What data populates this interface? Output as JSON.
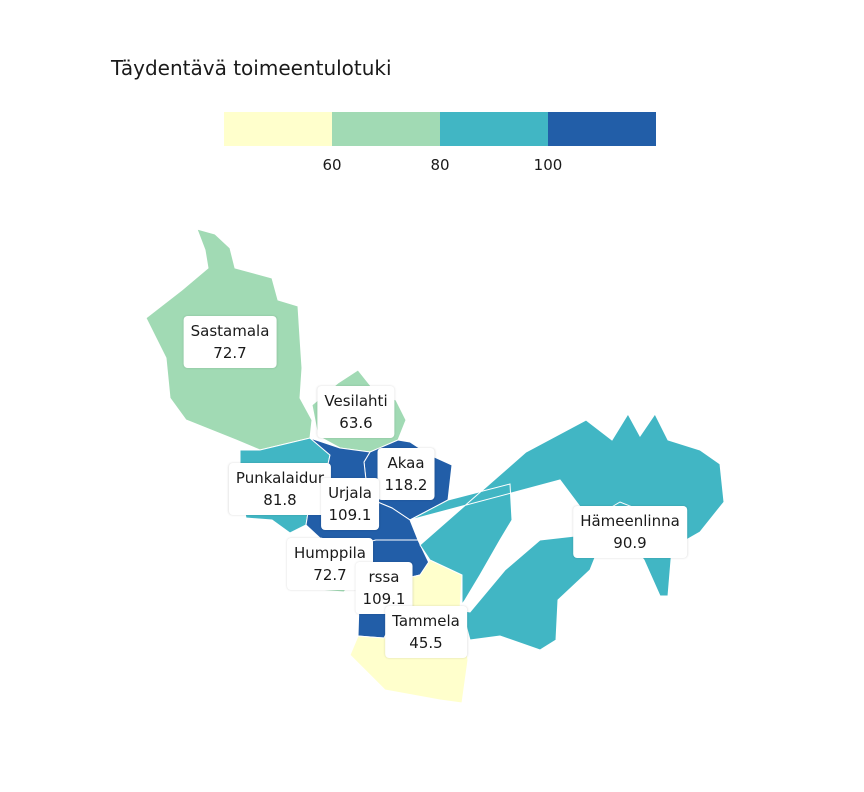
{
  "title": "Täydentävä toimeentulotuki",
  "legend": {
    "colors": [
      "#ffffcc",
      "#a1dab4",
      "#41b6c4",
      "#225ea8"
    ],
    "ticks": [
      "60",
      "80",
      "100"
    ]
  },
  "regions": [
    {
      "name": "Sastamala",
      "value": "72.7",
      "color": "#a1dab4"
    },
    {
      "name": "Vesilahti",
      "value": "63.6",
      "color": "#a1dab4"
    },
    {
      "name": "Akaa",
      "value": "118.2",
      "color": "#225ea8"
    },
    {
      "name": "Punkalaidun",
      "value": "81.8",
      "color": "#41b6c4"
    },
    {
      "name": "Urjala",
      "value": "109.1",
      "color": "#225ea8"
    },
    {
      "name": "Humppila",
      "value": "72.7",
      "color": "#a1dab4"
    },
    {
      "name": "Forssa",
      "value": "109.1",
      "color": "#225ea8"
    },
    {
      "name": "Tammela",
      "value": "45.5",
      "color": "#ffffcc"
    },
    {
      "name": "Hämeenlinna",
      "value": "90.9",
      "color": "#41b6c4"
    }
  ],
  "labels": [
    {
      "name": "Sastamala",
      "value": "72.7"
    },
    {
      "name": "Vesilahti",
      "value": "63.6"
    },
    {
      "name": "Akaa",
      "value": "118.2"
    },
    {
      "name": "Punkalaidur",
      "value": "81.8"
    },
    {
      "name": "Urjala",
      "value": "109.1"
    },
    {
      "name": "Humppila",
      "value": "72.7"
    },
    {
      "name": "rssa",
      "value": "109.1"
    },
    {
      "name": "Tammela",
      "value": "45.5"
    },
    {
      "name": "Hämeenlinna",
      "value": "90.9"
    }
  ]
}
